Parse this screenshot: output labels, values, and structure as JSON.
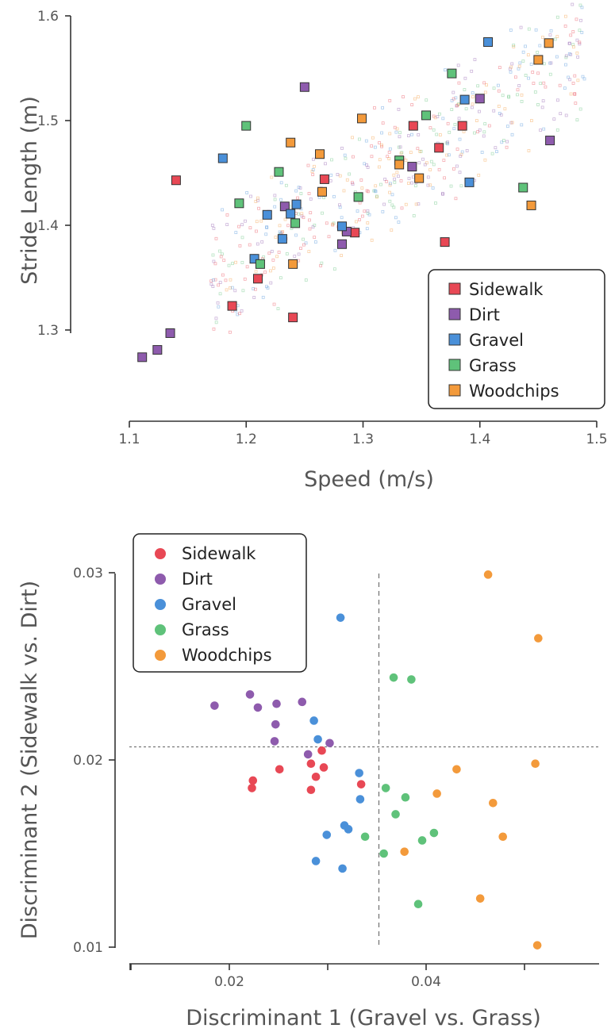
{
  "colors": {
    "Sidewalk": "#e84855",
    "Dirt": "#8e5bad",
    "Gravel": "#4a90d9",
    "Grass": "#5fc27a",
    "Woodchips": "#f39a3b"
  },
  "chart_data": [
    {
      "type": "scatter",
      "title": "",
      "xlabel": "Speed (m/s)",
      "ylabel": "Stride Length (m)",
      "xlim": [
        1.1,
        1.5
      ],
      "ylim": [
        1.22,
        1.6
      ],
      "xticks": [
        "1.1",
        "1.2",
        "1.3",
        "1.4",
        "1.5"
      ],
      "yticks": [
        "1.3",
        "1.4",
        "1.5",
        "1.6"
      ],
      "marker": "square",
      "legend_position": "bottom-right",
      "legend": [
        "Sidewalk",
        "Dirt",
        "Gravel",
        "Grass",
        "Woodchips"
      ],
      "background_cloud": "faint small points along trend from about (1.17, 1.35) to (1.49, 1.57)",
      "series": [
        {
          "name": "Sidewalk",
          "points": [
            [
              1.14,
              1.443
            ],
            [
              1.188,
              1.323
            ],
            [
              1.21,
              1.349
            ],
            [
              1.24,
              1.312
            ],
            [
              1.267,
              1.444
            ],
            [
              1.293,
              1.393
            ],
            [
              1.343,
              1.495
            ],
            [
              1.365,
              1.474
            ],
            [
              1.37,
              1.384
            ],
            [
              1.385,
              1.495
            ]
          ]
        },
        {
          "name": "Dirt",
          "points": [
            [
              1.111,
              1.274
            ],
            [
              1.124,
              1.281
            ],
            [
              1.135,
              1.297
            ],
            [
              1.233,
              1.418
            ],
            [
              1.25,
              1.532
            ],
            [
              1.282,
              1.382
            ],
            [
              1.286,
              1.394
            ],
            [
              1.342,
              1.456
            ],
            [
              1.4,
              1.521
            ],
            [
              1.46,
              1.481
            ]
          ]
        },
        {
          "name": "Gravel",
          "points": [
            [
              1.18,
              1.464
            ],
            [
              1.207,
              1.368
            ],
            [
              1.218,
              1.41
            ],
            [
              1.231,
              1.387
            ],
            [
              1.238,
              1.411
            ],
            [
              1.243,
              1.42
            ],
            [
              1.282,
              1.399
            ],
            [
              1.387,
              1.52
            ],
            [
              1.391,
              1.441
            ],
            [
              1.407,
              1.575
            ]
          ]
        },
        {
          "name": "Grass",
          "points": [
            [
              1.194,
              1.421
            ],
            [
              1.2,
              1.495
            ],
            [
              1.212,
              1.363
            ],
            [
              1.228,
              1.451
            ],
            [
              1.242,
              1.402
            ],
            [
              1.296,
              1.427
            ],
            [
              1.331,
              1.462
            ],
            [
              1.354,
              1.505
            ],
            [
              1.376,
              1.545
            ],
            [
              1.437,
              1.436
            ]
          ]
        },
        {
          "name": "Woodchips",
          "points": [
            [
              1.238,
              1.479
            ],
            [
              1.24,
              1.363
            ],
            [
              1.263,
              1.468
            ],
            [
              1.265,
              1.432
            ],
            [
              1.299,
              1.502
            ],
            [
              1.331,
              1.458
            ],
            [
              1.348,
              1.445
            ],
            [
              1.444,
              1.419
            ],
            [
              1.45,
              1.558
            ],
            [
              1.459,
              1.574
            ]
          ]
        }
      ]
    },
    {
      "type": "scatter",
      "title": "",
      "xlabel": "Discriminant 1 (Gravel vs. Grass)",
      "ylabel": "Discriminant 2 (Sidewalk vs. Dirt)",
      "xlim": [
        0.0105,
        0.059
      ],
      "ylim": [
        0.0093,
        0.031
      ],
      "xticks": [
        "0.02",
        "0.04"
      ],
      "yticks": [
        "0.01",
        "0.02",
        "0.03"
      ],
      "marker": "circle",
      "legend_position": "top-left",
      "legend": [
        "Sidewalk",
        "Dirt",
        "Gravel",
        "Grass",
        "Woodchips"
      ],
      "reference_lines": {
        "vertical_x": 0.0352,
        "horizontal_y": 0.0207
      },
      "series": [
        {
          "name": "Sidewalk",
          "points": [
            [
              0.0223,
              0.0185
            ],
            [
              0.0224,
              0.0189
            ],
            [
              0.0251,
              0.0195
            ],
            [
              0.0283,
              0.0198
            ],
            [
              0.0283,
              0.0184
            ],
            [
              0.0288,
              0.0191
            ],
            [
              0.0294,
              0.0205
            ],
            [
              0.0296,
              0.0196
            ],
            [
              0.0334,
              0.0187
            ]
          ]
        },
        {
          "name": "Dirt",
          "points": [
            [
              0.0185,
              0.0229
            ],
            [
              0.0221,
              0.0235
            ],
            [
              0.0229,
              0.0228
            ],
            [
              0.0247,
              0.0219
            ],
            [
              0.0246,
              0.021
            ],
            [
              0.0248,
              0.023
            ],
            [
              0.0274,
              0.0231
            ],
            [
              0.028,
              0.0203
            ],
            [
              0.0302,
              0.0209
            ]
          ]
        },
        {
          "name": "Gravel",
          "points": [
            [
              0.0286,
              0.0221
            ],
            [
              0.029,
              0.0211
            ],
            [
              0.0288,
              0.0146
            ],
            [
              0.0299,
              0.016
            ],
            [
              0.0313,
              0.0276
            ],
            [
              0.0317,
              0.0165
            ],
            [
              0.0321,
              0.0163
            ],
            [
              0.0332,
              0.0193
            ],
            [
              0.0333,
              0.0179
            ],
            [
              0.0315,
              0.0142
            ]
          ]
        },
        {
          "name": "Grass",
          "points": [
            [
              0.0338,
              0.0159
            ],
            [
              0.0359,
              0.0185
            ],
            [
              0.0367,
              0.0244
            ],
            [
              0.0369,
              0.0171
            ],
            [
              0.0379,
              0.018
            ],
            [
              0.0385,
              0.0243
            ],
            [
              0.0392,
              0.0123
            ],
            [
              0.0396,
              0.0157
            ],
            [
              0.0408,
              0.0161
            ],
            [
              0.0357,
              0.015
            ]
          ]
        },
        {
          "name": "Woodchips",
          "points": [
            [
              0.0378,
              0.0151
            ],
            [
              0.0411,
              0.0182
            ],
            [
              0.0431,
              0.0195
            ],
            [
              0.0455,
              0.0126
            ],
            [
              0.0463,
              0.0299
            ],
            [
              0.0468,
              0.0177
            ],
            [
              0.0478,
              0.0159
            ],
            [
              0.0511,
              0.0198
            ],
            [
              0.0514,
              0.0265
            ],
            [
              0.0513,
              0.0101
            ]
          ]
        }
      ]
    }
  ]
}
